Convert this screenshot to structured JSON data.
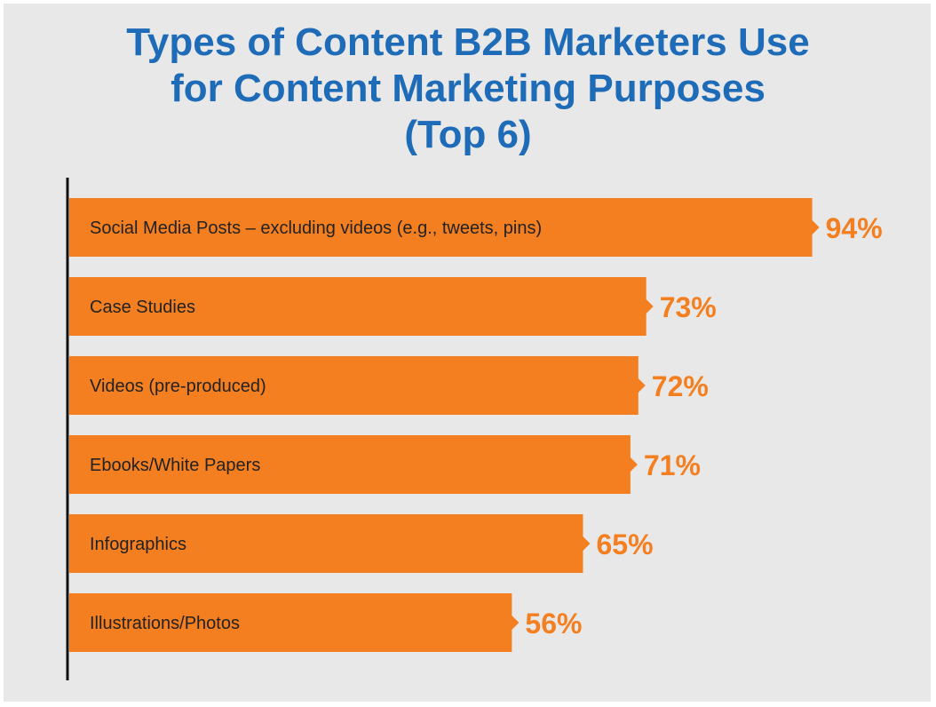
{
  "chart_data": {
    "type": "bar",
    "orientation": "horizontal",
    "title_lines": [
      "Types of Content B2B Marketers Use",
      "for Content Marketing Purposes",
      "(Top 6)"
    ],
    "categories": [
      "Social Media Posts – excluding videos (e.g., tweets, pins)",
      "Case Studies",
      "Videos (pre-produced)",
      "Ebooks/White Papers",
      "Infographics",
      "Illustrations/Photos"
    ],
    "values": [
      94,
      73,
      72,
      71,
      65,
      56
    ],
    "value_labels": [
      "94%",
      "73%",
      "72%",
      "71%",
      "65%",
      "56%"
    ],
    "xlim": [
      0,
      100
    ],
    "grid": false,
    "colors": {
      "bar": "#f47f20",
      "title": "#1e6bb8",
      "background": "#e8e8e8"
    }
  }
}
